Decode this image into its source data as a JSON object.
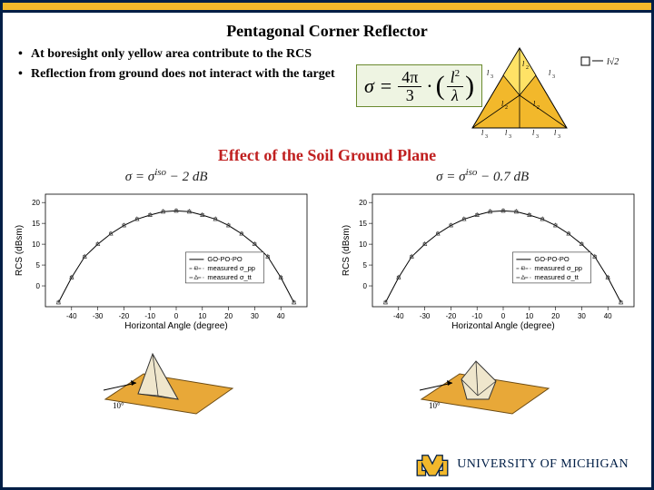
{
  "frame": {
    "outer_border_color": "#001e46",
    "gold_band_color": "#f2b82b",
    "background_color": "#ffffff"
  },
  "title": "Pentagonal Corner Reflector",
  "bullets": [
    "At boresight only yellow area contribute to the RCS",
    "Reflection from ground does not interact with the target"
  ],
  "formula": {
    "lhs": "σ =",
    "frac1_num": "4π",
    "frac1_den": "3",
    "dot": "·",
    "paren_open": "(",
    "frac2_num": "l",
    "frac2_num_sup": "2",
    "frac2_den": "λ",
    "paren_close": ")",
    "border_color": "#6a8a2f",
    "background_color": "#eef4e2"
  },
  "triangle": {
    "fill_outer": "#f2b82b",
    "fill_apex": "#ffe266",
    "stroke": "#000000",
    "edge_labels": [
      {
        "text": "l",
        "sub": "3"
      },
      {
        "text": "l",
        "sub": "3"
      },
      {
        "text": "l",
        "sub": "2"
      },
      {
        "text": "l",
        "sub": "2"
      },
      {
        "text": "l",
        "sub": "2"
      },
      {
        "text": "l",
        "sub": "3"
      },
      {
        "text": "l",
        "sub": "3"
      },
      {
        "text": "l",
        "sub": "3"
      }
    ],
    "legend": {
      "marker": "□",
      "text": "l√2"
    }
  },
  "subtitle": "Effect of the Soil Ground Plane",
  "subtitle_color": "#c02020",
  "eq_left": "σ = σ^{iso} − 2 dB",
  "eq_right": "σ = σ^{iso} − 0.7 dB",
  "chart_common": {
    "xlabel": "Horizontal Angle (degree)",
    "ylabel": "RCS (dBsm)",
    "xlim": [
      -50,
      50
    ],
    "ylim": [
      -5,
      22
    ],
    "xticks": [
      -40,
      -30,
      -20,
      -10,
      0,
      10,
      20,
      30,
      40
    ],
    "yticks": [
      0,
      5,
      10,
      15,
      20
    ],
    "background_color": "#ffffff",
    "grid_color": "#d8d8d8",
    "series": [
      {
        "name": "GO-PO-PO",
        "style": "solid",
        "color": "#000000",
        "marker": "none"
      },
      {
        "name": "measured σ_pp",
        "style": "dash",
        "color": "#444444",
        "marker": "square"
      },
      {
        "name": "measured σ_tt",
        "style": "dashdot",
        "color": "#444444",
        "marker": "triangle"
      }
    ],
    "curve_x": [
      -45,
      -40,
      -35,
      -30,
      -25,
      -20,
      -15,
      -10,
      -5,
      0,
      5,
      10,
      15,
      20,
      25,
      30,
      35,
      40,
      45
    ],
    "curve_y": [
      -4,
      2,
      7,
      10,
      12.5,
      14.5,
      16,
      17,
      17.8,
      18,
      17.8,
      17,
      16,
      14.5,
      12.5,
      10,
      7,
      2,
      -4
    ]
  },
  "scenes": {
    "ground_color": "#e8a838",
    "ground_stroke": "#6b4a12",
    "plate_fill": "#efe6cc",
    "plate_stroke": "#333333",
    "angle_label": "10°"
  },
  "logo": {
    "m_fill": "#f2b82b",
    "m_stroke": "#001e46",
    "text": "UNIVERSITY OF MICHIGAN",
    "text_color": "#001e46"
  }
}
